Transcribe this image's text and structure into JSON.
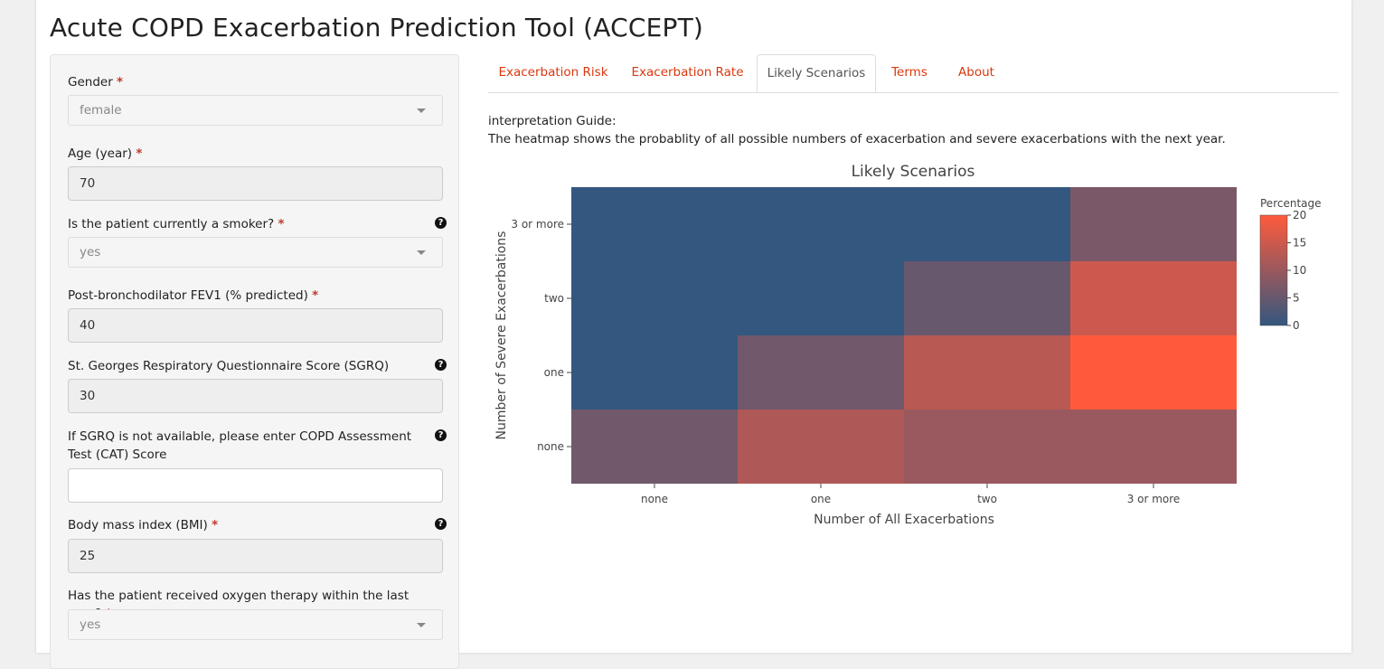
{
  "title": "Acute COPD Exacerbation Prediction Tool (ACCEPT)",
  "form": {
    "required_mark": "*",
    "help_glyph": "?",
    "gender": {
      "label": "Gender",
      "value": "female"
    },
    "age": {
      "label": "Age (year)",
      "value": "70"
    },
    "smoker": {
      "label": "Is the patient currently a smoker?",
      "value": "yes"
    },
    "fev1": {
      "label": "Post-bronchodilator FEV1 (% predicted)",
      "value": "40"
    },
    "sgrq": {
      "label": "St. Georges Respiratory Questionnaire Score (SGRQ)",
      "value": "30"
    },
    "cat": {
      "label": "If SGRQ is not available, please enter COPD Assessment Test (CAT) Score",
      "value": ""
    },
    "bmi": {
      "label": "Body mass index (BMI)",
      "value": "25"
    },
    "oxygen": {
      "label": "Has the patient received oxygen therapy within the last year?",
      "value": "yes"
    }
  },
  "tabs": [
    {
      "label": "Exacerbation Risk",
      "active": false
    },
    {
      "label": "Exacerbation Rate",
      "active": false
    },
    {
      "label": "Likely Scenarios",
      "active": true
    },
    {
      "label": "Terms",
      "active": false
    },
    {
      "label": "About",
      "active": false
    }
  ],
  "guide": {
    "heading": "interpretation Guide:",
    "text": "The heatmap shows the probablity of all possible numbers of exacerbation and severe exacerbations with the next year."
  },
  "colors": {
    "low": "#34577f",
    "high": "#ff5a3c",
    "tab_link": "#d9380e"
  },
  "chart_data": {
    "type": "heatmap",
    "title": "Likely Scenarios",
    "xlabel": "Number of All Exacerbations",
    "ylabel": "Number of Severe Exacerbations",
    "x": [
      "none",
      "one",
      "two",
      "3 or more"
    ],
    "y": [
      "none",
      "one",
      "two",
      "3 or more"
    ],
    "z": [
      [
        6,
        12,
        10,
        10
      ],
      [
        0,
        6,
        13,
        20
      ],
      [
        0,
        0,
        5,
        15
      ],
      [
        0,
        0,
        0,
        7
      ]
    ],
    "colorbar": {
      "title": "Percentage",
      "ticks": [
        0,
        5,
        10,
        15,
        20
      ],
      "range": [
        0,
        20
      ]
    }
  }
}
